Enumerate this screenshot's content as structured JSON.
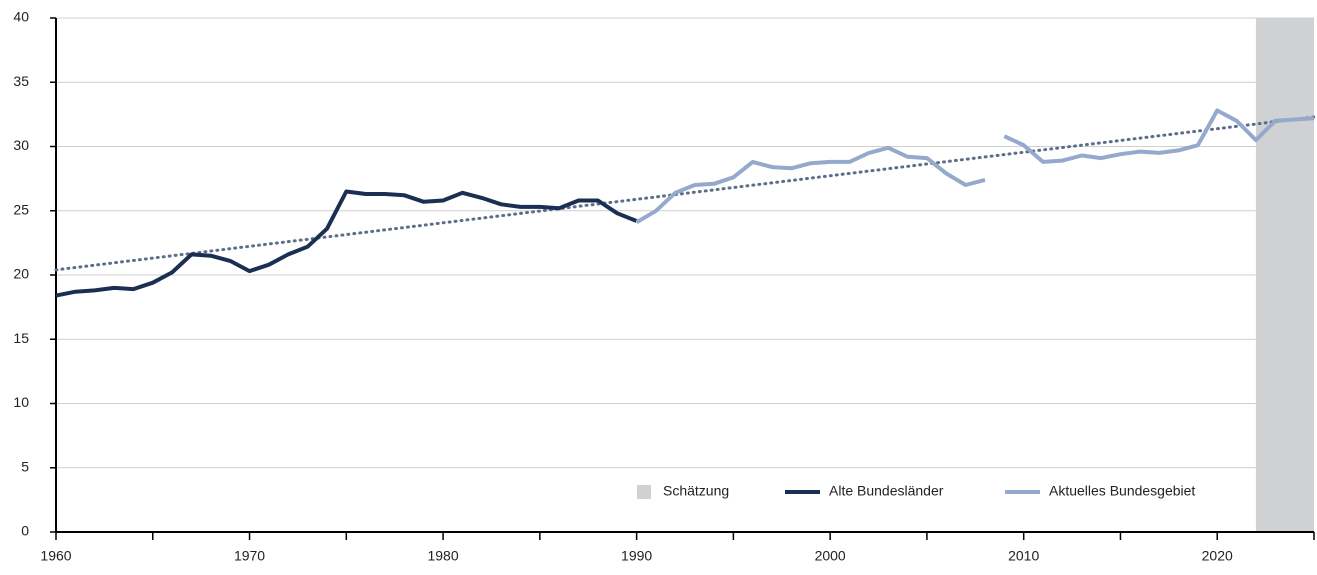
{
  "chart_data": {
    "type": "line",
    "xlim": [
      1960,
      2025
    ],
    "xticks": [
      1960,
      1970,
      1980,
      1990,
      2000,
      2010,
      2020
    ],
    "xticks_minor": [
      1965,
      1975,
      1985,
      1995,
      2005,
      2015,
      2025
    ],
    "ylim": [
      0,
      40
    ],
    "yticks": [
      0,
      5,
      10,
      15,
      20,
      25,
      30,
      35,
      40
    ],
    "grid": true,
    "legend": "bottom-right",
    "shaded_region": {
      "label": "Schätzung",
      "from": 2022,
      "to": 2025,
      "color": "#d0d1d3"
    },
    "trend": {
      "x": [
        1960,
        2025
      ],
      "values": [
        20.4,
        32.3
      ],
      "color": "#5d6c87"
    },
    "series": [
      {
        "name": "Alte Bundesländer",
        "color": "#1b2f52",
        "x": [
          1960,
          1961,
          1962,
          1963,
          1964,
          1965,
          1966,
          1967,
          1968,
          1969,
          1970,
          1971,
          1972,
          1973,
          1974,
          1975,
          1976,
          1977,
          1978,
          1979,
          1980,
          1981,
          1982,
          1983,
          1984,
          1985,
          1986,
          1987,
          1988,
          1989,
          1990
        ],
        "values": [
          18.4,
          18.7,
          18.8,
          19.0,
          18.9,
          19.4,
          20.2,
          21.6,
          21.5,
          21.1,
          20.3,
          20.8,
          21.6,
          22.2,
          23.6,
          26.5,
          26.3,
          26.3,
          26.2,
          25.7,
          25.8,
          26.4,
          26.0,
          25.5,
          25.3,
          25.3,
          25.2,
          25.8,
          25.8,
          24.8,
          24.2
        ]
      },
      {
        "name": "Aktuelles Bundesgebiet",
        "color": "#94a9cc",
        "x": [
          1990,
          1991,
          1992,
          1993,
          1994,
          1995,
          1996,
          1997,
          1998,
          1999,
          2000,
          2001,
          2002,
          2003,
          2004,
          2005,
          2006,
          2007,
          2008,
          null,
          2009,
          2010,
          2011,
          2012,
          2013,
          2014,
          2015,
          2016,
          2017,
          2018,
          2019,
          2020,
          2021,
          2022,
          2023,
          2024,
          2025
        ],
        "values": [
          24.1,
          25.0,
          26.4,
          27.0,
          27.1,
          27.6,
          28.8,
          28.4,
          28.3,
          28.7,
          28.8,
          28.8,
          29.5,
          29.9,
          29.2,
          29.1,
          27.9,
          27.0,
          27.4,
          null,
          30.8,
          30.1,
          28.8,
          28.9,
          29.3,
          29.1,
          29.4,
          29.6,
          29.5,
          29.7,
          30.1,
          32.8,
          32.0,
          30.5,
          32.0,
          32.1,
          32.2
        ]
      }
    ]
  }
}
